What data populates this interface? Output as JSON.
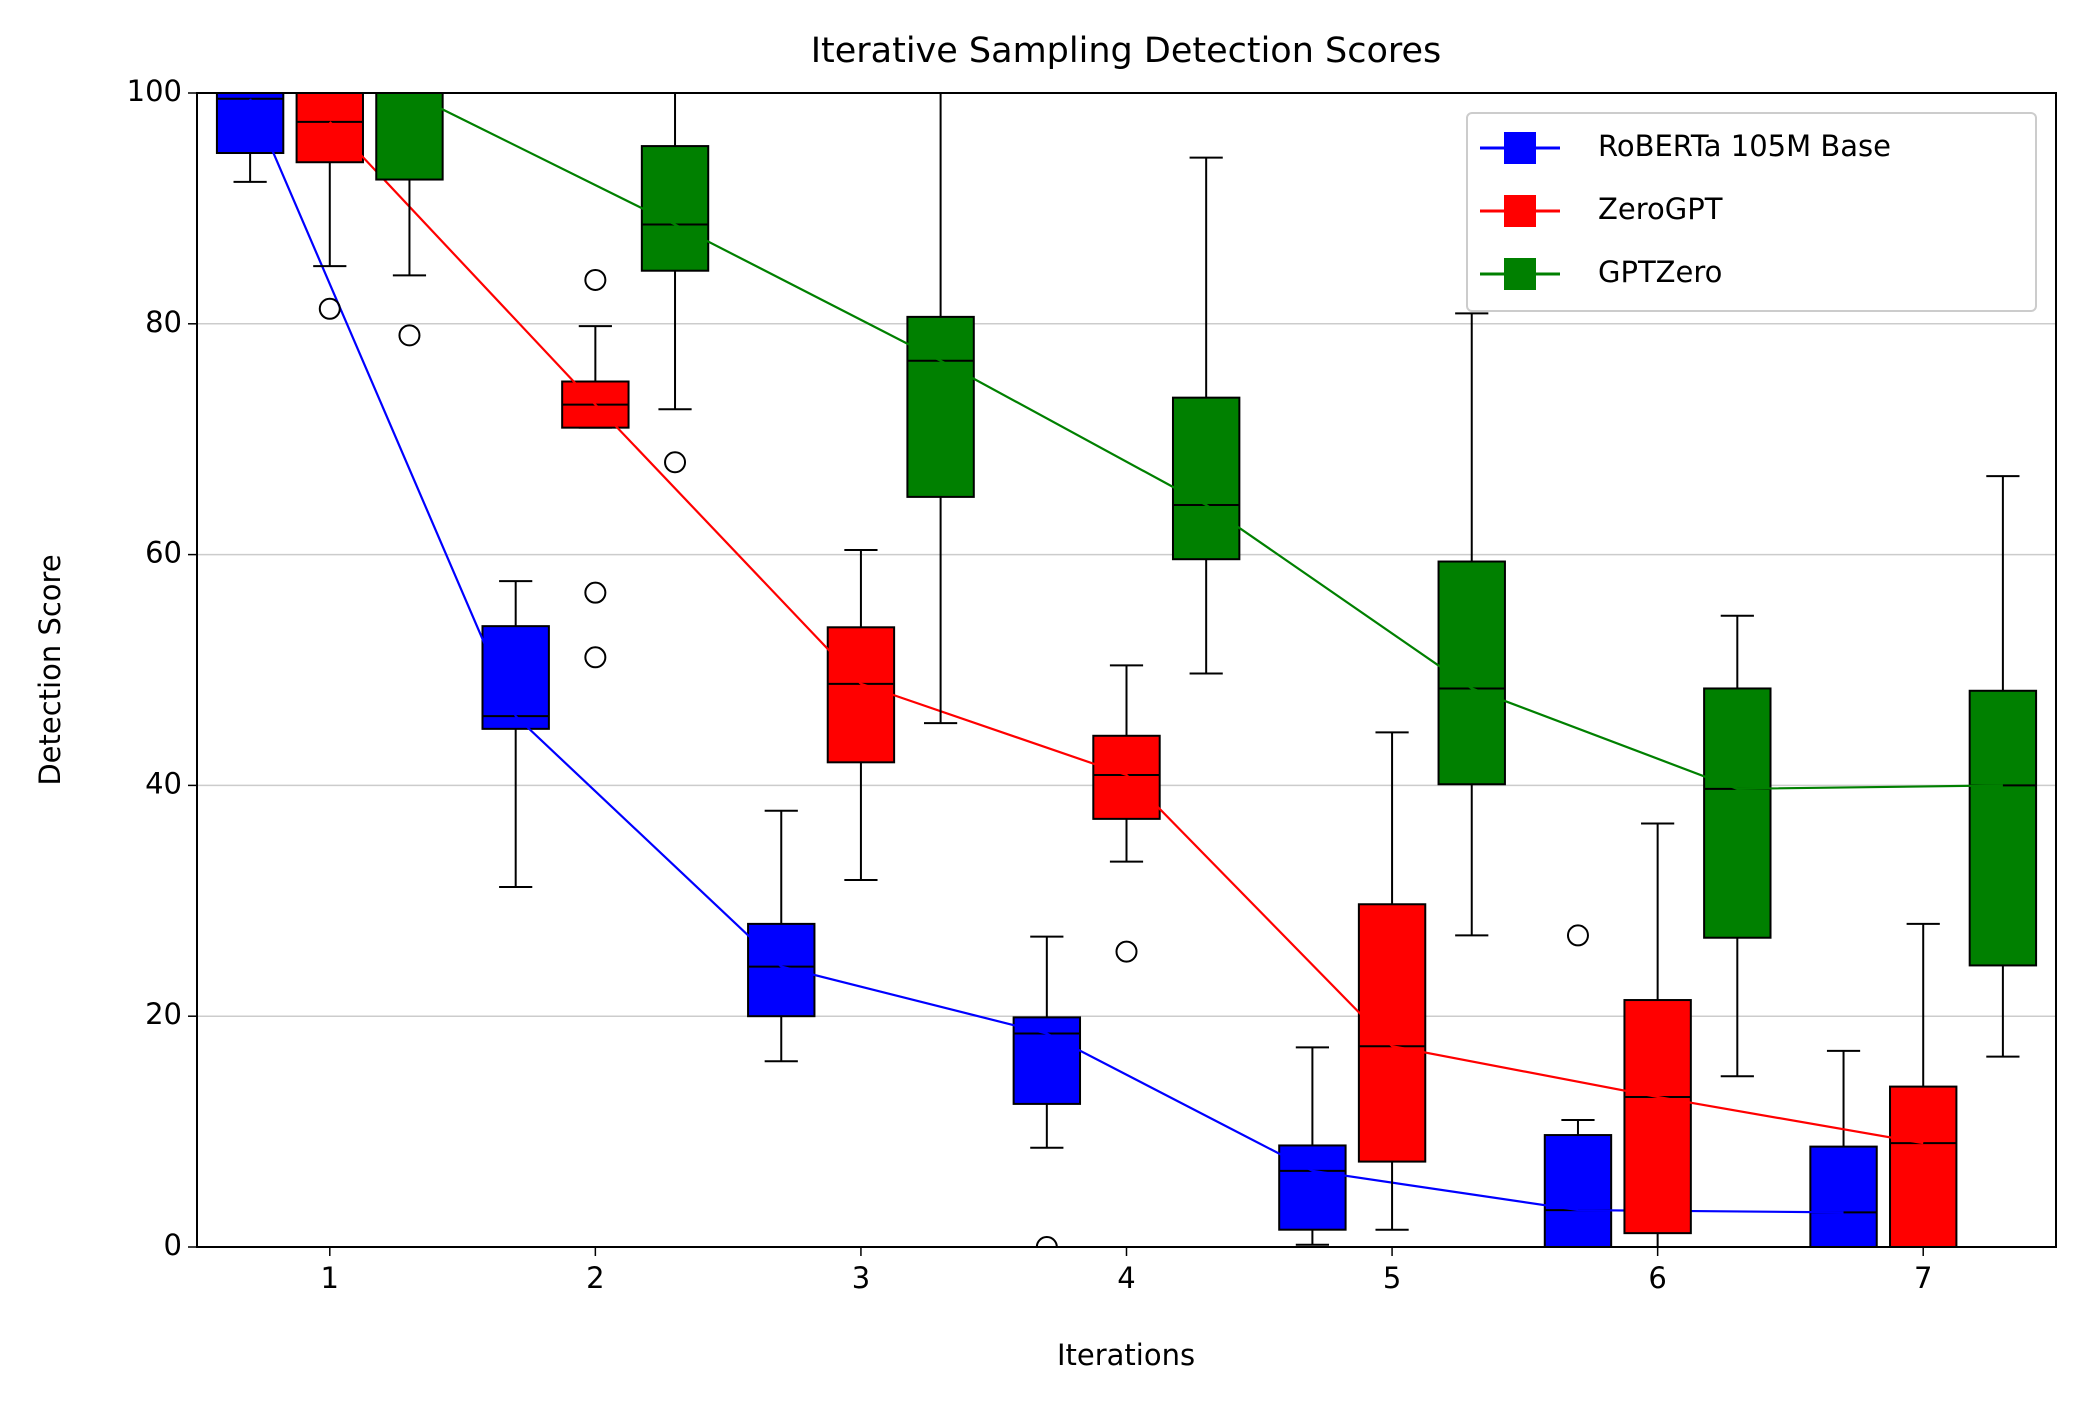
{
  "chart_data": {
    "type": "box",
    "title": "Iterative Sampling Detection Scores",
    "x_label": "Iterations",
    "y_label": "Detection Score",
    "x": [
      1,
      2,
      3,
      4,
      5,
      6,
      7
    ],
    "xlim": [
      0.5,
      7.5
    ],
    "xticks": [
      1,
      2,
      3,
      4,
      5,
      6,
      7
    ],
    "ylim": [
      0,
      100
    ],
    "yticks": [
      0,
      20,
      40,
      60,
      80,
      100
    ],
    "grid": true,
    "legend": "upper right",
    "series": [
      {
        "name": "RoBERTa 105M Base",
        "color": "#0000ff",
        "boxes": [
          {
            "whislo": 92.3,
            "q1": 94.8,
            "med": 99.5,
            "q3": 100,
            "whishi": 100,
            "fliers": []
          },
          {
            "whislo": 31.2,
            "q1": 44.9,
            "med": 46,
            "q3": 53.8,
            "whishi": 57.7,
            "fliers": []
          },
          {
            "whislo": 16.1,
            "q1": 20,
            "med": 24.3,
            "q3": 28,
            "whishi": 37.8,
            "fliers": []
          },
          {
            "whislo": 8.6,
            "q1": 12.4,
            "med": 18.5,
            "q3": 19.9,
            "whishi": 26.9,
            "fliers": [
              0
            ]
          },
          {
            "whislo": 0.2,
            "q1": 1.5,
            "med": 6.6,
            "q3": 8.8,
            "whishi": 17.3,
            "fliers": []
          },
          {
            "whislo": 0,
            "q1": 0,
            "med": 3.2,
            "q3": 9.7,
            "whishi": 11,
            "fliers": [
              27
            ]
          },
          {
            "whislo": 0,
            "q1": 0,
            "med": 3,
            "q3": 8.7,
            "whishi": 17,
            "fliers": []
          }
        ]
      },
      {
        "name": "ZeroGPT",
        "color": "#ff0000",
        "boxes": [
          {
            "whislo": 85,
            "q1": 94,
            "med": 97.5,
            "q3": 100,
            "whishi": 100,
            "fliers": [
              81.3
            ]
          },
          {
            "whislo": 71,
            "q1": 71,
            "med": 73,
            "q3": 75,
            "whishi": 79.8,
            "fliers": [
              83.8,
              56.7,
              51.1
            ]
          },
          {
            "whislo": 31.8,
            "q1": 42,
            "med": 48.8,
            "q3": 53.7,
            "whishi": 60.4,
            "fliers": []
          },
          {
            "whislo": 33.4,
            "q1": 37.1,
            "med": 40.9,
            "q3": 44.3,
            "whishi": 50.4,
            "fliers": [
              25.6
            ]
          },
          {
            "whislo": 1.5,
            "q1": 7.4,
            "med": 17.4,
            "q3": 29.7,
            "whishi": 44.6,
            "fliers": []
          },
          {
            "whislo": 0,
            "q1": 1.2,
            "med": 13,
            "q3": 21.4,
            "whishi": 36.7,
            "fliers": []
          },
          {
            "whislo": 0,
            "q1": 0,
            "med": 9,
            "q3": 13.9,
            "whishi": 28,
            "fliers": []
          }
        ]
      },
      {
        "name": "GPTZero",
        "color": "#008000",
        "boxes": [
          {
            "whislo": 84.2,
            "q1": 92.5,
            "med": 100,
            "q3": 100,
            "whishi": 100,
            "fliers": [
              79
            ]
          },
          {
            "whislo": 72.6,
            "q1": 84.6,
            "med": 88.6,
            "q3": 95.4,
            "whishi": 100,
            "fliers": [
              68
            ]
          },
          {
            "whislo": 45.4,
            "q1": 65,
            "med": 76.8,
            "q3": 80.6,
            "whishi": 100,
            "fliers": []
          },
          {
            "whislo": 49.7,
            "q1": 59.6,
            "med": 64.3,
            "q3": 73.6,
            "whishi": 94.4,
            "fliers": []
          },
          {
            "whislo": 27,
            "q1": 40.1,
            "med": 48.4,
            "q3": 59.4,
            "whishi": 80.9,
            "fliers": []
          },
          {
            "whislo": 14.8,
            "q1": 26.8,
            "med": 39.7,
            "q3": 48.4,
            "whishi": 54.7,
            "fliers": []
          },
          {
            "whislo": 16.5,
            "q1": 24.4,
            "med": 40,
            "q3": 48.2,
            "whishi": 66.8,
            "fliers": []
          }
        ]
      }
    ]
  }
}
